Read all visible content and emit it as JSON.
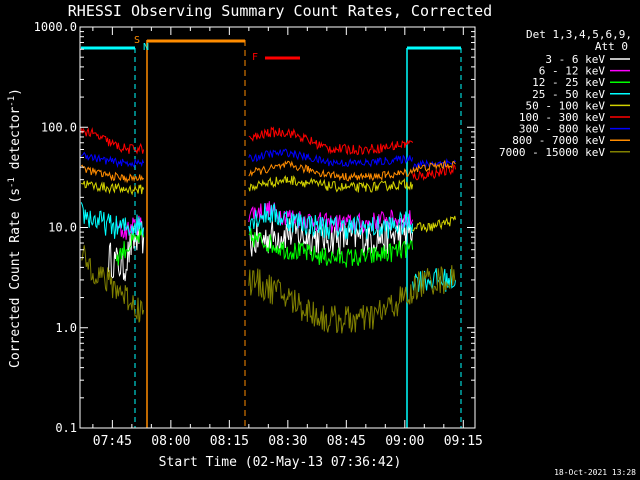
{
  "chart_data": {
    "type": "line",
    "title": "RHESSI Observing Summary Count Rates, Corrected",
    "xlabel": "Start Time (02-May-13 07:36:42)",
    "ylabel": "Corrected Count Rate (s⁻¹ detector⁻¹)",
    "ylabel_main": "Corrected Count Rate (s",
    "ylabel_sup1": "-1",
    "ylabel_mid": " detector",
    "ylabel_sup2": "-1",
    "ylabel_end": ")",
    "yscale": "log",
    "ylim": [
      0.1,
      1000.0
    ],
    "xlim": [
      "07:36:42",
      "09:18:00"
    ],
    "x_ticks": [
      "07:45",
      "08:00",
      "08:15",
      "08:30",
      "08:45",
      "09:00",
      "09:15"
    ],
    "y_ticks": [
      "0.1",
      "1.0",
      "10.0",
      "100.0",
      "1000.0"
    ],
    "timestamp": "18-Oct-2021 13:28",
    "legend": {
      "placement": "right",
      "header1": "Det 1,3,4,5,6,9,",
      "header2": "Att 0",
      "entries": [
        {
          "label": "3 - 6 keV",
          "color": "#ffffff"
        },
        {
          "label": "6 - 12 keV",
          "color": "#ff00ff"
        },
        {
          "label": "12 - 25 keV",
          "color": "#00ff00"
        },
        {
          "label": "25 - 50 keV",
          "color": "#00ffff"
        },
        {
          "label": "50 - 100 keV",
          "color": "#d2d200"
        },
        {
          "label": "100 - 300 keV",
          "color": "#ff0000"
        },
        {
          "label": "300 - 800 keV",
          "color": "#0000ff"
        },
        {
          "label": "800 - 7000 keV",
          "color": "#ff8c00"
        },
        {
          "label": "7000 - 15000 keV",
          "color": "#808000"
        }
      ]
    },
    "annotations": [
      {
        "label": "S",
        "color": "#ff8c00"
      },
      {
        "label": "N",
        "color": "#00ffff"
      },
      {
        "label": "F",
        "color": "#ff0000"
      }
    ],
    "series": [
      {
        "name": "3 - 6 keV",
        "color": "#ffffff",
        "segments": [
          {
            "x": [
              "07:44",
              "07:48",
              "07:50",
              "07:52",
              "07:53"
            ],
            "y": [
              5,
              4,
              7,
              8,
              8
            ]
          },
          {
            "x": [
              "08:20",
              "08:25",
              "08:30",
              "08:35",
              "08:40",
              "08:45",
              "08:50",
              "08:55",
              "09:00",
              "09:02"
            ],
            "y": [
              7,
              8,
              9,
              8,
              8,
              8,
              8,
              8,
              9,
              9
            ]
          }
        ]
      },
      {
        "name": "6 - 12 keV",
        "color": "#ff00ff",
        "segments": [
          {
            "x": [
              "07:46",
              "07:48",
              "07:50",
              "07:52",
              "07:53"
            ],
            "y": [
              10,
              9,
              10,
              11,
              10
            ]
          },
          {
            "x": [
              "08:20",
              "08:25",
              "08:30",
              "08:35",
              "08:40",
              "08:45",
              "08:50",
              "08:55",
              "09:00",
              "09:02"
            ],
            "y": [
              14,
              15,
              13,
              12,
              11,
              11,
              11,
              12,
              12,
              12
            ]
          }
        ]
      },
      {
        "name": "12 - 25 keV",
        "color": "#00ff00",
        "segments": [
          {
            "x": [
              "07:46",
              "07:48",
              "07:50",
              "07:52",
              "07:53"
            ],
            "y": [
              5,
              6,
              7,
              8,
              8
            ]
          },
          {
            "x": [
              "08:20",
              "08:25",
              "08:30",
              "08:35",
              "08:40",
              "08:45",
              "08:50",
              "08:55",
              "09:00",
              "09:02"
            ],
            "y": [
              8,
              7,
              6,
              5.5,
              5,
              5,
              5,
              5.5,
              6,
              6
            ]
          }
        ]
      },
      {
        "name": "25 - 50 keV",
        "color": "#00ffff",
        "segments": [
          {
            "x": [
              "07:37",
              "07:40",
              "07:43",
              "07:46",
              "07:49",
              "07:52",
              "07:53"
            ],
            "y": [
              14,
              12,
              11,
              10,
              10,
              11,
              10
            ]
          },
          {
            "x": [
              "08:20",
              "08:25",
              "08:30",
              "08:35",
              "08:40",
              "08:45",
              "08:50",
              "08:55",
              "09:00",
              "09:02"
            ],
            "y": [
              12,
              14,
              12,
              11,
              10,
              10,
              10,
              10,
              11,
              11
            ]
          },
          {
            "x": [
              "09:02",
              "09:06",
              "09:10",
              "09:13"
            ],
            "y": [
              3,
              3,
              3,
              3
            ]
          }
        ]
      },
      {
        "name": "50 - 100 keV",
        "color": "#d2d200",
        "segments": [
          {
            "x": [
              "07:37",
              "07:40",
              "07:44",
              "07:48",
              "07:52",
              "07:53"
            ],
            "y": [
              28,
              26,
              25,
              24,
              24,
              24
            ]
          },
          {
            "x": [
              "08:20",
              "08:25",
              "08:30",
              "08:35",
              "08:40",
              "08:45",
              "08:50",
              "08:55",
              "09:00",
              "09:02"
            ],
            "y": [
              25,
              28,
              30,
              28,
              26,
              25,
              25,
              26,
              27,
              27
            ]
          },
          {
            "x": [
              "09:02",
              "09:06",
              "09:10",
              "09:13"
            ],
            "y": [
              10,
              10,
              11,
              12
            ]
          }
        ]
      },
      {
        "name": "100 - 300 keV",
        "color": "#ff0000",
        "segments": [
          {
            "x": [
              "07:37",
              "07:40",
              "07:43",
              "07:46",
              "07:49",
              "07:52",
              "07:53"
            ],
            "y": [
              95,
              85,
              75,
              65,
              60,
              62,
              60
            ]
          },
          {
            "x": [
              "08:20",
              "08:25",
              "08:30",
              "08:35",
              "08:40",
              "08:45",
              "08:50",
              "08:55",
              "09:00",
              "09:02"
            ],
            "y": [
              75,
              88,
              90,
              75,
              62,
              60,
              60,
              63,
              68,
              70
            ]
          },
          {
            "x": [
              "09:02",
              "09:06",
              "09:10",
              "09:13"
            ],
            "y": [
              32,
              34,
              36,
              38
            ]
          }
        ]
      },
      {
        "name": "300 - 800 keV",
        "color": "#0000ff",
        "segments": [
          {
            "x": [
              "07:37",
              "07:40",
              "07:44",
              "07:48",
              "07:52",
              "07:53"
            ],
            "y": [
              55,
              50,
              46,
              44,
              44,
              44
            ]
          },
          {
            "x": [
              "08:20",
              "08:25",
              "08:30",
              "08:35",
              "08:40",
              "08:45",
              "08:50",
              "08:55",
              "09:00",
              "09:02"
            ],
            "y": [
              48,
              54,
              56,
              50,
              45,
              44,
              44,
              46,
              48,
              50
            ]
          },
          {
            "x": [
              "09:02",
              "09:06",
              "09:10",
              "09:13"
            ],
            "y": [
              42,
              43,
              44,
              45
            ]
          }
        ]
      },
      {
        "name": "800 - 7000 keV",
        "color": "#ff8c00",
        "segments": [
          {
            "x": [
              "07:37",
              "07:40",
              "07:44",
              "07:48",
              "07:52",
              "07:53"
            ],
            "y": [
              40,
              36,
              33,
              31,
              31,
              31
            ]
          },
          {
            "x": [
              "08:20",
              "08:25",
              "08:30",
              "08:35",
              "08:40",
              "08:45",
              "08:50",
              "08:55",
              "09:00",
              "09:02"
            ],
            "y": [
              35,
              38,
              42,
              38,
              34,
              32,
              32,
              33,
              35,
              36
            ]
          },
          {
            "x": [
              "09:02",
              "09:06",
              "09:10",
              "09:13"
            ],
            "y": [
              38,
              40,
              42,
              43
            ]
          }
        ]
      },
      {
        "name": "7000 - 15000 keV",
        "color": "#808000",
        "segments": [
          {
            "x": [
              "07:37",
              "07:40",
              "07:43",
              "07:46",
              "07:49",
              "07:52",
              "07:53"
            ],
            "y": [
              5,
              4,
              3,
              2.5,
              2,
              1.5,
              1.5
            ]
          },
          {
            "x": [
              "08:20",
              "08:25",
              "08:30",
              "08:35",
              "08:40",
              "08:45",
              "08:50",
              "08:55",
              "09:00",
              "09:02"
            ],
            "y": [
              3,
              2.5,
              2,
              1.5,
              1.2,
              1.2,
              1.2,
              1.5,
              2,
              2
            ]
          },
          {
            "x": [
              "09:02",
              "09:06",
              "09:10",
              "09:13"
            ],
            "y": [
              2.5,
              3,
              3,
              3
            ]
          }
        ]
      }
    ]
  }
}
